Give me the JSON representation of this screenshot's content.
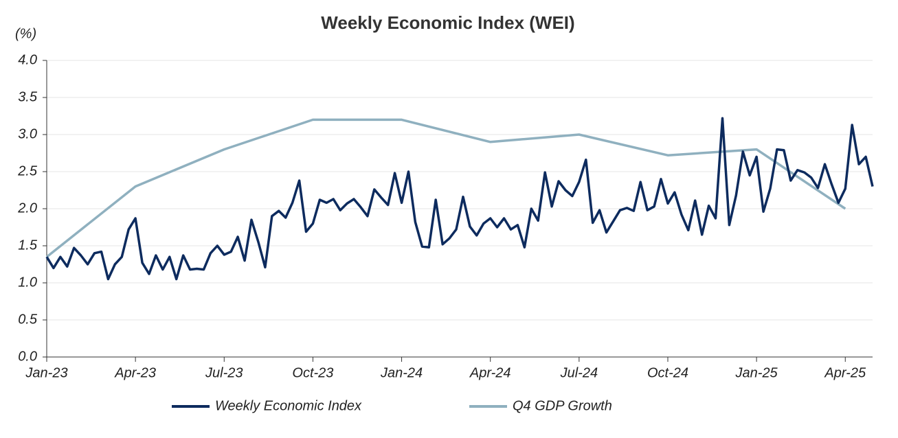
{
  "chart_data": {
    "type": "line",
    "title": "Weekly Economic Index (WEI)",
    "y_label": "(%)",
    "ylim": [
      0,
      4.0
    ],
    "yticks": [
      {
        "value": 0,
        "label": "0.0"
      },
      0.5,
      {
        "value": 1,
        "label": "1.0"
      },
      1.5,
      {
        "value": 2,
        "label": "2.0"
      },
      2.5,
      {
        "value": 3,
        "label": "3.0"
      },
      3.5,
      {
        "value": 4,
        "label": "4.0"
      }
    ],
    "xlim": [
      0,
      121
    ],
    "xticks": [
      {
        "value": 0,
        "label": "Jan-23"
      },
      {
        "value": 13,
        "label": "Apr-23"
      },
      {
        "value": 26,
        "label": "Jul-23"
      },
      {
        "value": 39,
        "label": "Oct-23"
      },
      {
        "value": 52,
        "label": "Jan-24"
      },
      {
        "value": 65,
        "label": "Apr-24"
      },
      {
        "value": 78,
        "label": "Jul-24"
      },
      {
        "value": 91,
        "label": "Oct-24"
      },
      {
        "value": 104,
        "label": "Jan-25"
      },
      {
        "value": 117,
        "label": "Apr-25"
      }
    ],
    "grid": true,
    "legend": "bottom",
    "series": [
      {
        "name": "Weekly Economic Index",
        "color": "#0d2b5e",
        "x": [
          0,
          1,
          2,
          3,
          4,
          5,
          6,
          7,
          8,
          9,
          10,
          11,
          12,
          13,
          14,
          15,
          16,
          17,
          18,
          19,
          20,
          21,
          22,
          23,
          24,
          25,
          26,
          27,
          28,
          29,
          30,
          31,
          32,
          33,
          34,
          35,
          36,
          37,
          38,
          39,
          40,
          41,
          42,
          43,
          44,
          45,
          46,
          47,
          48,
          49,
          50,
          51,
          52,
          53,
          54,
          55,
          56,
          57,
          58,
          59,
          60,
          61,
          62,
          63,
          64,
          65,
          66,
          67,
          68,
          69,
          70,
          71,
          72,
          73,
          74,
          75,
          76,
          77,
          78,
          79,
          80,
          81,
          82,
          83,
          84,
          85,
          86,
          87,
          88,
          89,
          90,
          91,
          92,
          93,
          94,
          95,
          96,
          97,
          98,
          99,
          100,
          101,
          102,
          103,
          104,
          105,
          106,
          107,
          108,
          109,
          110,
          111,
          112,
          113,
          114,
          115,
          116,
          117,
          118,
          119,
          120,
          121
        ],
        "values": [
          1.35,
          1.2,
          1.35,
          1.22,
          1.47,
          1.37,
          1.25,
          1.4,
          1.42,
          1.05,
          1.25,
          1.35,
          1.72,
          1.87,
          1.27,
          1.12,
          1.37,
          1.18,
          1.35,
          1.05,
          1.37,
          1.18,
          1.19,
          1.18,
          1.4,
          1.5,
          1.38,
          1.42,
          1.62,
          1.3,
          1.85,
          1.55,
          1.21,
          1.9,
          1.97,
          1.88,
          2.08,
          2.38,
          1.69,
          1.8,
          2.12,
          2.08,
          2.13,
          1.98,
          2.07,
          2.13,
          2.02,
          1.9,
          2.26,
          2.15,
          2.05,
          2.48,
          2.08,
          2.5,
          1.82,
          1.49,
          1.48,
          2.12,
          1.52,
          1.6,
          1.72,
          2.16,
          1.76,
          1.64,
          1.8,
          1.87,
          1.75,
          1.87,
          1.72,
          1.78,
          1.48,
          2.0,
          1.84,
          2.49,
          2.03,
          2.37,
          2.25,
          2.17,
          2.36,
          2.66,
          1.81,
          1.98,
          1.68,
          1.83,
          1.98,
          2.01,
          1.97,
          2.36,
          1.98,
          2.03,
          2.4,
          2.07,
          2.22,
          1.92,
          1.71,
          2.11,
          1.65,
          2.04,
          1.87,
          3.22,
          1.78,
          2.18,
          2.77,
          2.45,
          2.7,
          1.96,
          2.27,
          2.8,
          2.79,
          2.38,
          2.52,
          2.49,
          2.42,
          2.28,
          2.6,
          2.33,
          2.08,
          2.27,
          3.13,
          2.6,
          2.7,
          2.3
        ]
      },
      {
        "name": "Q4 GDP Growth",
        "color": "#8fb0bf",
        "x": [
          0,
          13,
          26,
          39,
          52,
          65,
          78,
          91,
          104,
          117
        ],
        "values": [
          1.35,
          2.3,
          2.8,
          3.2,
          3.2,
          2.9,
          3.0,
          2.72,
          2.8,
          2.0
        ]
      }
    ]
  }
}
